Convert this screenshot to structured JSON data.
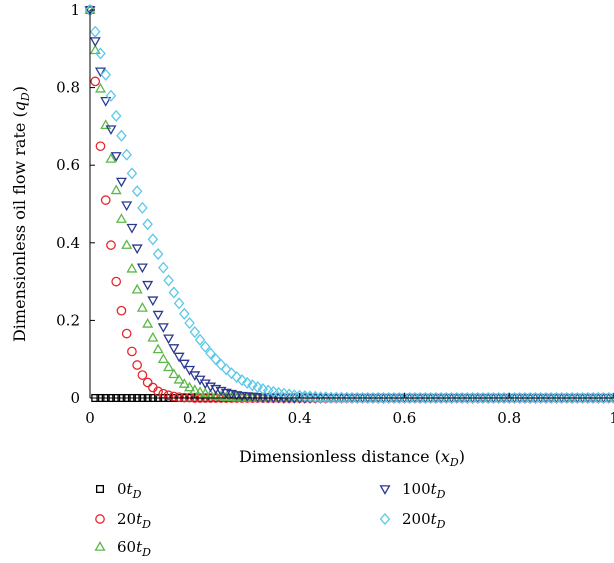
{
  "chart_data": {
    "type": "scatter",
    "xlabel": "Dimensionless distance (",
    "xlabel_var": "x",
    "xlabel_sub": "D",
    "xlabel_end": ")",
    "ylabel": "Dimensionless oil flow rate (",
    "ylabel_var": "q",
    "ylabel_sub": "D",
    "ylabel_end": ")",
    "xlim": [
      0,
      1
    ],
    "ylim": [
      0,
      1
    ],
    "x_ticks": [
      0,
      0.2,
      0.4,
      0.6,
      0.8,
      1
    ],
    "x_tick_labels": [
      "0",
      "0.2",
      "0.4",
      "0.6",
      "0.8",
      "1"
    ],
    "y_ticks": [
      0,
      0.2,
      0.4,
      0.6,
      0.8,
      1
    ],
    "y_tick_labels": [
      "0",
      "0.2",
      "0.4",
      "0.6",
      "0.8",
      "1"
    ],
    "grid": false,
    "legend_position": "bottom",
    "x_step": 0.01,
    "x_count": 101,
    "series": [
      {
        "name": "0t",
        "name_sub": "D",
        "marker": "square",
        "color": "#000000",
        "values": [
          1,
          0,
          0,
          0,
          0,
          0,
          0,
          0,
          0,
          0,
          0,
          0,
          0,
          0,
          0,
          0,
          0,
          0,
          0,
          0,
          0,
          0,
          0,
          0,
          0,
          0,
          0,
          0,
          0,
          0,
          0,
          0,
          0,
          0,
          0,
          0,
          0,
          0,
          0,
          0,
          0,
          0,
          0,
          0,
          0,
          0,
          0,
          0,
          0,
          0,
          0,
          0,
          0,
          0,
          0,
          0,
          0,
          0,
          0,
          0,
          0,
          0,
          0,
          0,
          0,
          0,
          0,
          0,
          0,
          0,
          0,
          0,
          0,
          0,
          0,
          0,
          0,
          0,
          0,
          0,
          0,
          0,
          0,
          0,
          0,
          0,
          0,
          0,
          0,
          0,
          0,
          0,
          0,
          0,
          0,
          0,
          0,
          0,
          0,
          0,
          0
        ]
      },
      {
        "name": "20t",
        "name_sub": "D",
        "marker": "circle",
        "color": "#e8262b",
        "values": [
          1,
          0.816,
          0.649,
          0.51,
          0.394,
          0.3,
          0.225,
          0.166,
          0.12,
          0.085,
          0.059,
          0.04,
          0.027,
          0.017,
          0.011,
          0.007,
          0.004,
          0.002,
          0.001,
          0.001,
          0,
          0,
          0,
          0,
          0,
          0,
          0,
          0,
          0,
          0,
          0,
          0,
          0,
          0,
          0,
          0,
          0,
          0,
          0,
          0,
          0,
          0,
          0,
          0,
          0,
          0,
          0,
          0,
          0,
          0,
          0,
          0,
          0,
          0,
          0,
          0,
          0,
          0,
          0,
          0,
          0,
          0,
          0,
          0,
          0,
          0,
          0,
          0,
          0,
          0,
          0,
          0,
          0,
          0,
          0,
          0,
          0,
          0,
          0,
          0,
          0,
          0,
          0,
          0,
          0,
          0,
          0,
          0,
          0,
          0,
          0,
          0,
          0,
          0,
          0,
          0,
          0,
          0,
          0,
          0,
          0
        ]
      },
      {
        "name": "60t",
        "name_sub": "D",
        "marker": "triangle-up",
        "color": "#5cb848",
        "values": [
          1,
          0.896,
          0.797,
          0.703,
          0.616,
          0.535,
          0.461,
          0.394,
          0.333,
          0.279,
          0.232,
          0.191,
          0.155,
          0.125,
          0.1,
          0.079,
          0.061,
          0.047,
          0.036,
          0.027,
          0.02,
          0.015,
          0.011,
          0.008,
          0.005,
          0.004,
          0.002,
          0.002,
          0.001,
          0.001,
          0,
          0,
          0,
          0,
          0,
          0,
          0,
          0,
          0,
          0,
          0,
          0,
          0,
          0,
          0,
          0,
          0,
          0,
          0,
          0,
          0,
          0,
          0,
          0,
          0,
          0,
          0,
          0,
          0,
          0,
          0,
          0,
          0,
          0,
          0,
          0,
          0,
          0,
          0,
          0,
          0,
          0,
          0,
          0,
          0,
          0,
          0,
          0,
          0,
          0,
          0,
          0,
          0,
          0,
          0,
          0,
          0,
          0,
          0,
          0,
          0,
          0,
          0,
          0,
          0,
          0,
          0,
          0,
          0,
          0,
          0
        ]
      },
      {
        "name": "100t",
        "name_sub": "D",
        "marker": "triangle-down",
        "color": "#2b3990",
        "values": [
          1,
          0.92,
          0.842,
          0.766,
          0.693,
          0.624,
          0.558,
          0.497,
          0.439,
          0.386,
          0.337,
          0.292,
          0.252,
          0.215,
          0.183,
          0.154,
          0.129,
          0.107,
          0.089,
          0.073,
          0.059,
          0.048,
          0.038,
          0.03,
          0.024,
          0.019,
          0.014,
          0.011,
          0.008,
          0.006,
          0.005,
          0.004,
          0.003,
          0.002,
          0.001,
          0.001,
          0.001,
          0,
          0,
          0,
          0,
          0,
          0,
          0,
          0,
          0,
          0,
          0,
          0,
          0,
          0,
          0,
          0,
          0,
          0,
          0,
          0,
          0,
          0,
          0,
          0,
          0,
          0,
          0,
          0,
          0,
          0,
          0,
          0,
          0,
          0,
          0,
          0,
          0,
          0,
          0,
          0,
          0,
          0,
          0,
          0,
          0,
          0,
          0,
          0,
          0,
          0,
          0,
          0,
          0,
          0,
          0,
          0,
          0,
          0,
          0,
          0,
          0,
          0,
          0,
          0
        ]
      },
      {
        "name": "200t",
        "name_sub": "D",
        "marker": "diamond",
        "color": "#5bc8e8",
        "values": [
          1,
          0.944,
          0.888,
          0.833,
          0.779,
          0.727,
          0.676,
          0.627,
          0.579,
          0.533,
          0.49,
          0.448,
          0.409,
          0.371,
          0.336,
          0.303,
          0.272,
          0.244,
          0.217,
          0.193,
          0.17,
          0.15,
          0.132,
          0.115,
          0.1,
          0.086,
          0.074,
          0.064,
          0.054,
          0.046,
          0.039,
          0.033,
          0.028,
          0.023,
          0.019,
          0.016,
          0.013,
          0.011,
          0.009,
          0.007,
          0.006,
          0.005,
          0.004,
          0.003,
          0.002,
          0.002,
          0.001,
          0.001,
          0.001,
          0.001,
          0,
          0,
          0,
          0,
          0,
          0,
          0,
          0,
          0,
          0,
          0,
          0,
          0,
          0,
          0,
          0,
          0,
          0,
          0,
          0,
          0,
          0,
          0,
          0,
          0,
          0,
          0,
          0,
          0,
          0,
          0,
          0,
          0,
          0,
          0,
          0,
          0,
          0,
          0,
          0,
          0,
          0,
          0,
          0,
          0,
          0,
          0,
          0,
          0,
          0,
          0
        ]
      }
    ]
  }
}
